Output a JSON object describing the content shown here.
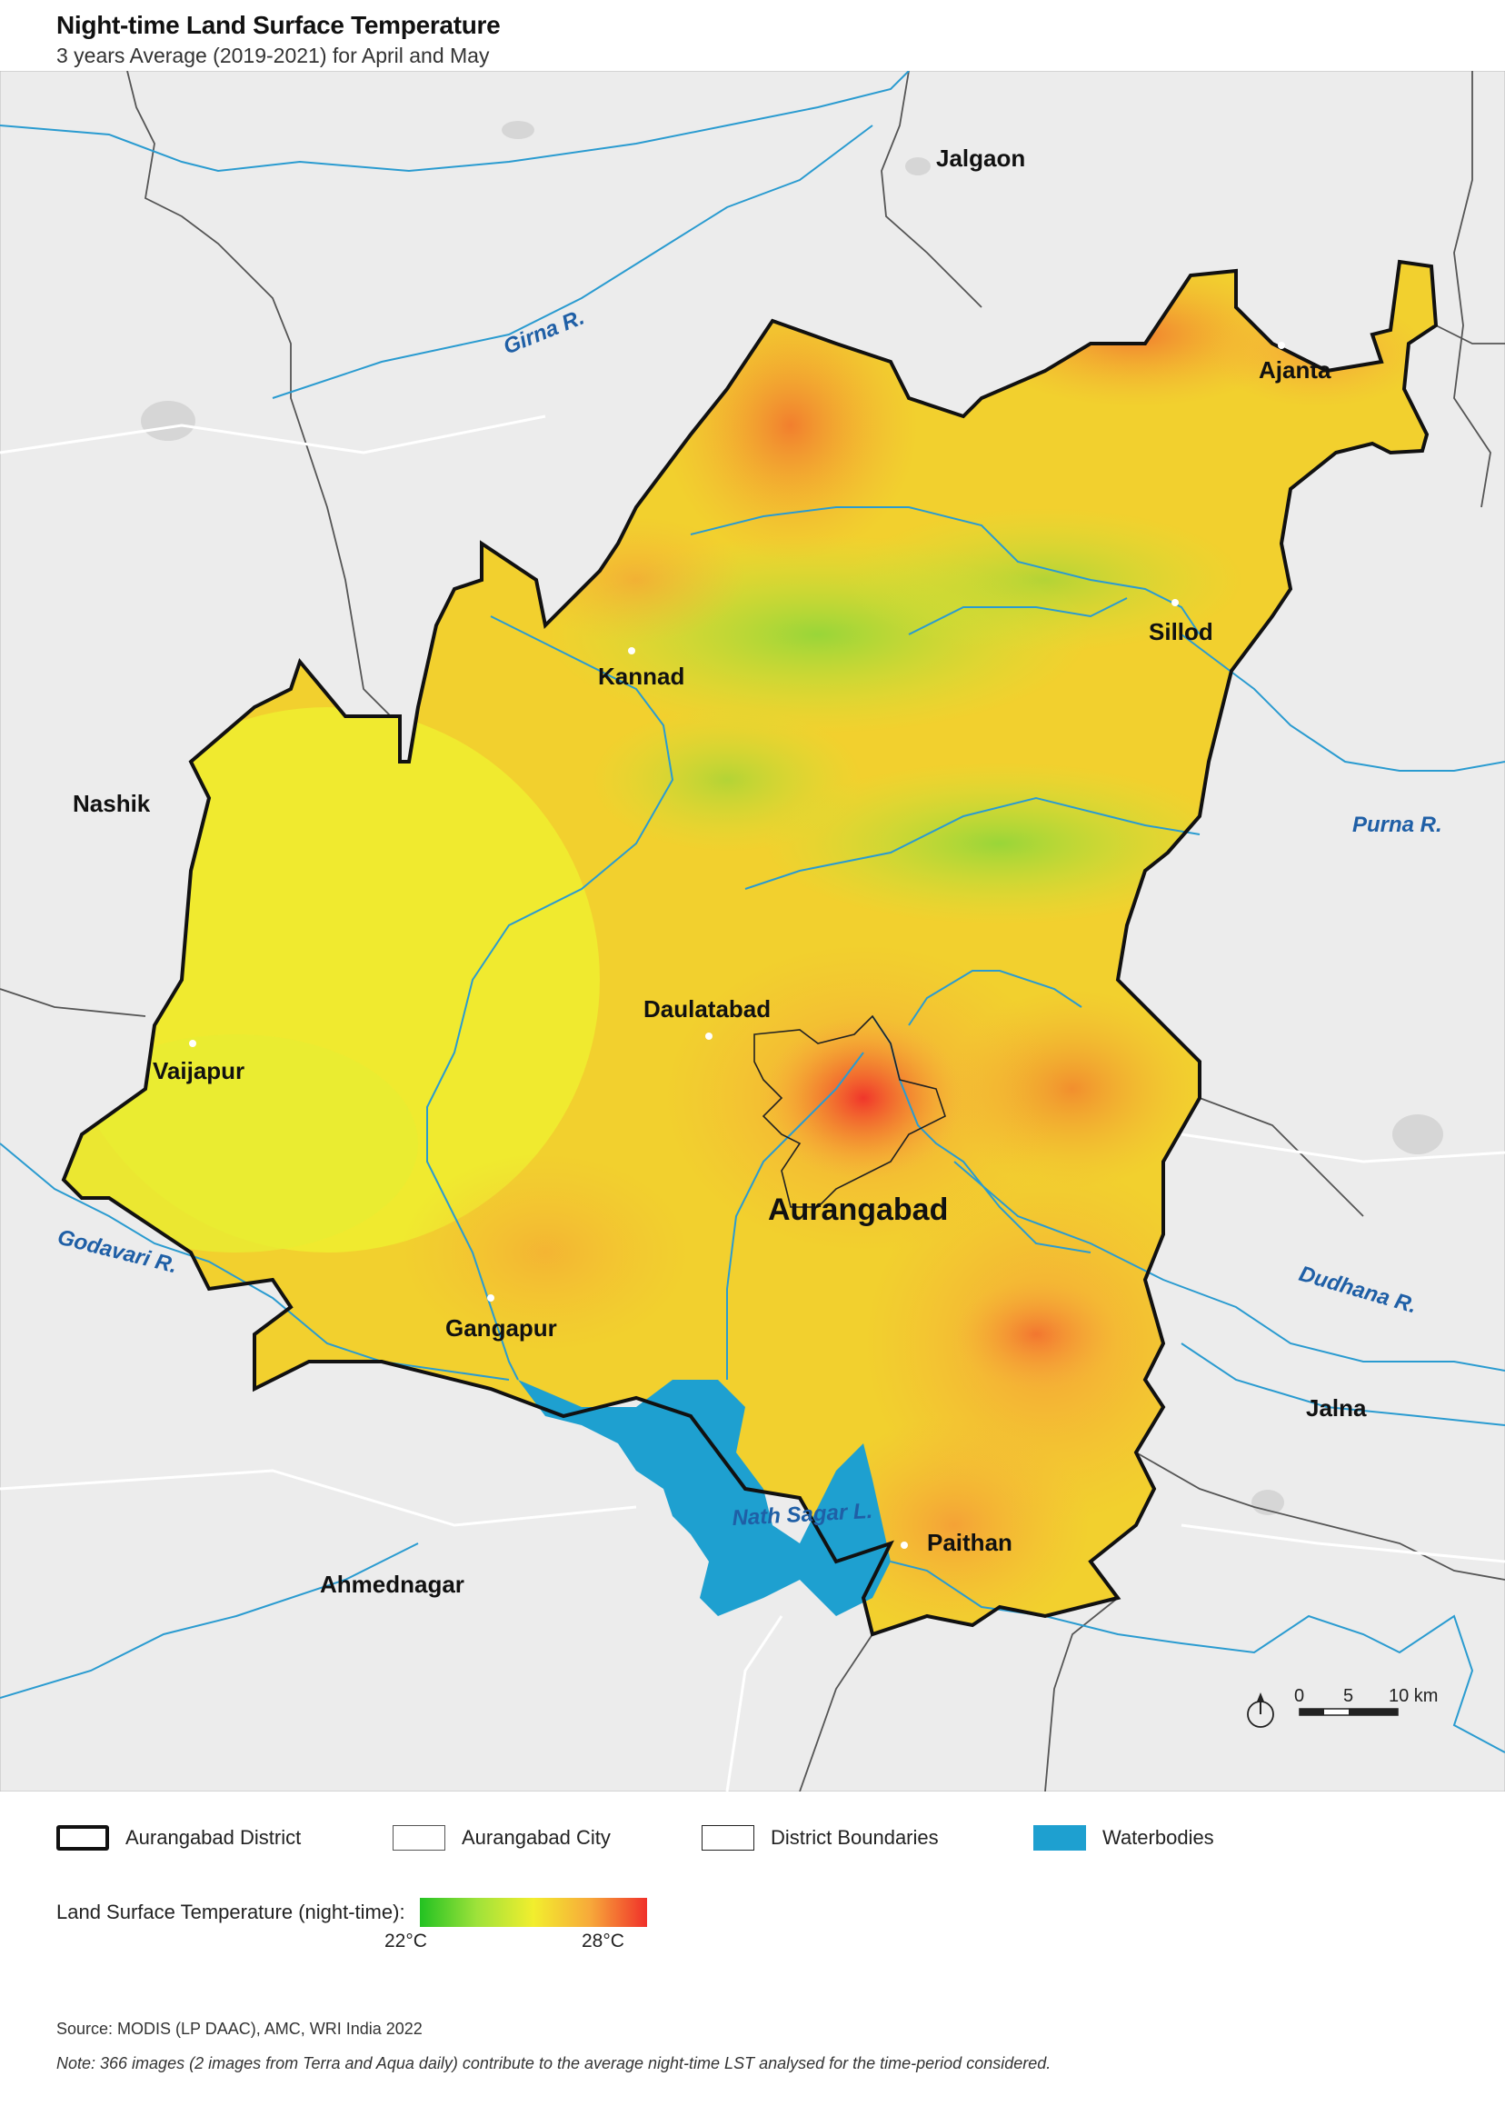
{
  "header": {
    "title": "Night-time Land Surface Temperature",
    "subtitle": "3 years Average (2019-2021) for April and May"
  },
  "map": {
    "districts": {
      "jalgaon": "Jalgaon",
      "nashik": "Nashik",
      "jalna": "Jalna",
      "ahmednagar": "Ahmednagar"
    },
    "towns": {
      "ajanta": "Ajanta",
      "sillod": "Sillod",
      "kannad": "Kannad",
      "daulatabad": "Daulatabad",
      "vaijapur": "Vaijapur",
      "gangapur": "Gangapur",
      "paithan": "Paithan",
      "aurangabad": "Aurangabad"
    },
    "rivers": {
      "girna": "Girna R.",
      "purna": "Purna R.",
      "godavari": "Godavari R.",
      "dudhana": "Dudhana R.",
      "nath_sagar": "Nath Sagar L."
    },
    "scale_bar": {
      "ticks": [
        "0",
        "5",
        "10 km"
      ],
      "north_arrow": "north-arrow-icon"
    }
  },
  "legend": {
    "district": "Aurangabad District",
    "city": "Aurangabad City",
    "boundaries": "District Boundaries",
    "waterbodies": "Waterbodies",
    "lst_label": "Land Surface Temperature (night-time):",
    "lst_min": "22°C",
    "lst_max": "28°C"
  },
  "colors": {
    "cool": "#22c222",
    "mid": "#f2ee2e",
    "hot": "#f0302a",
    "water": "#1ea0d0",
    "river": "#2a9bd0",
    "river_label": "#1f5fa6"
  },
  "footer": {
    "source": "Source: MODIS (LP DAAC), AMC, WRI India 2022",
    "note": "Note: 366 images (2 images from Terra and Aqua daily) contribute to the average night-time LST analysed for the time-period considered."
  }
}
